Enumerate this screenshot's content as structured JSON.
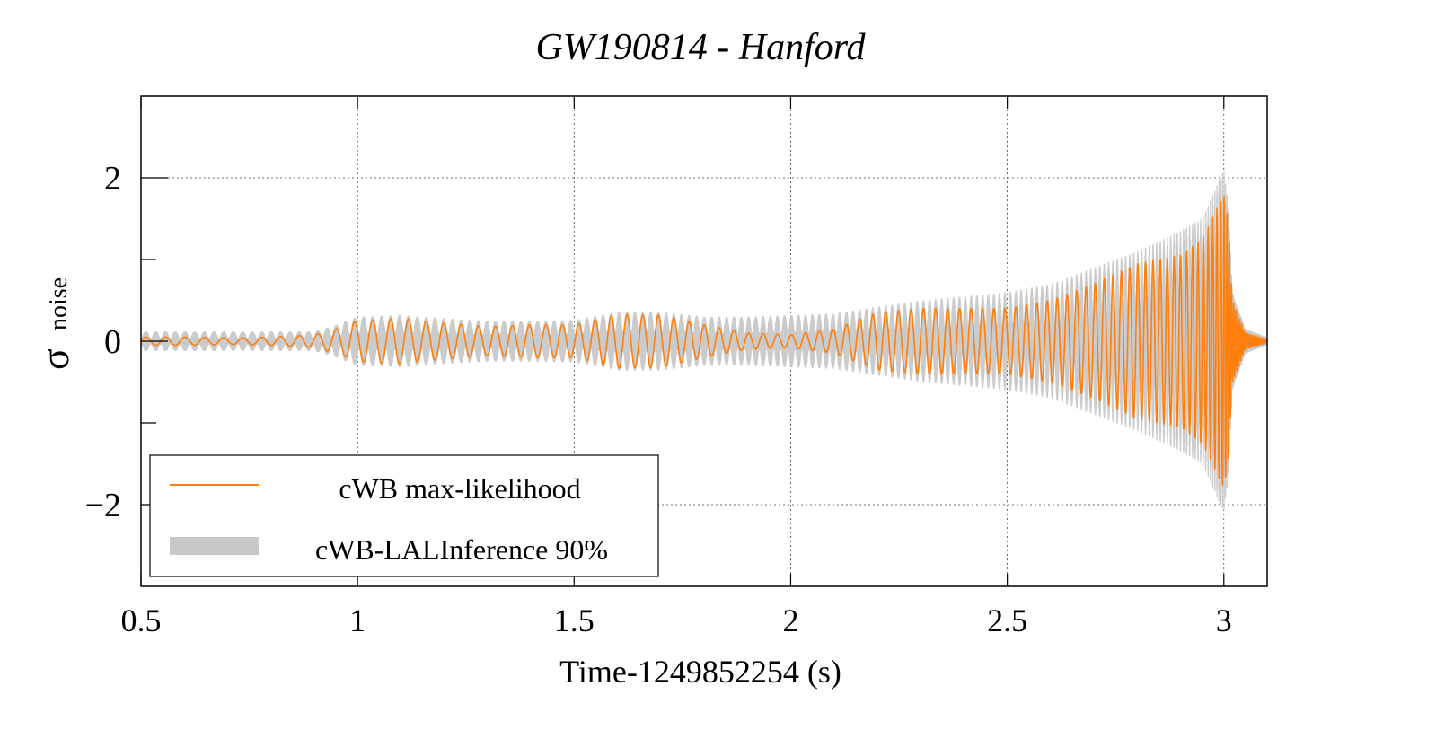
{
  "chart_data": {
    "type": "line",
    "title": "GW190814 - Hanford",
    "xlabel": "Time-1249852254 (s)",
    "ylabel_main": "σ",
    "ylabel_sub": "noise",
    "xlim": [
      0.5,
      3.1
    ],
    "ylim": [
      -3,
      3
    ],
    "x_ticks": [
      0.5,
      1,
      1.5,
      2,
      2.5,
      3
    ],
    "x_tick_labels": [
      "0.5",
      "1",
      "1.5",
      "2",
      "2.5",
      "3"
    ],
    "y_ticks": [
      -2,
      0,
      2
    ],
    "y_tick_labels": [
      "−2",
      "0",
      "2"
    ],
    "y_minor_ticks": [
      -1,
      1
    ],
    "grid": true,
    "legend_position": "bottom-left",
    "series": [
      {
        "name": "cWB max-likelihood",
        "style": "line",
        "color": "#ff7f0e",
        "envelope_t": [
          0.5,
          0.6,
          0.7,
          0.8,
          0.9,
          0.95,
          1.0,
          1.1,
          1.2,
          1.3,
          1.4,
          1.5,
          1.6,
          1.7,
          1.8,
          1.9,
          2.0,
          2.1,
          2.2,
          2.3,
          2.4,
          2.5,
          2.6,
          2.7,
          2.8,
          2.9,
          2.95,
          3.0,
          3.01,
          3.02,
          3.05,
          3.1
        ],
        "envelope_amp": [
          0.05,
          0.05,
          0.04,
          0.05,
          0.08,
          0.15,
          0.25,
          0.28,
          0.22,
          0.18,
          0.2,
          0.2,
          0.33,
          0.32,
          0.2,
          0.1,
          0.08,
          0.15,
          0.35,
          0.4,
          0.4,
          0.4,
          0.5,
          0.7,
          0.95,
          1.05,
          1.25,
          1.8,
          1.5,
          0.5,
          0.1,
          0.02
        ]
      },
      {
        "name": "cWB-LALInference 90%",
        "style": "band",
        "color": "#c8c8c8",
        "envelope_t": [
          0.5,
          0.6,
          0.7,
          0.8,
          0.9,
          0.95,
          1.0,
          1.1,
          1.2,
          1.3,
          1.4,
          1.5,
          1.6,
          1.7,
          1.8,
          1.9,
          2.0,
          2.1,
          2.2,
          2.3,
          2.4,
          2.5,
          2.6,
          2.7,
          2.8,
          2.9,
          2.95,
          3.0,
          3.01,
          3.02,
          3.05,
          3.1
        ],
        "envelope_amp": [
          0.12,
          0.12,
          0.12,
          0.12,
          0.12,
          0.2,
          0.3,
          0.32,
          0.28,
          0.25,
          0.25,
          0.26,
          0.36,
          0.36,
          0.3,
          0.3,
          0.32,
          0.34,
          0.42,
          0.5,
          0.55,
          0.6,
          0.7,
          0.9,
          1.1,
          1.35,
          1.5,
          2.1,
          1.7,
          0.6,
          0.15,
          0.05
        ]
      }
    ]
  }
}
